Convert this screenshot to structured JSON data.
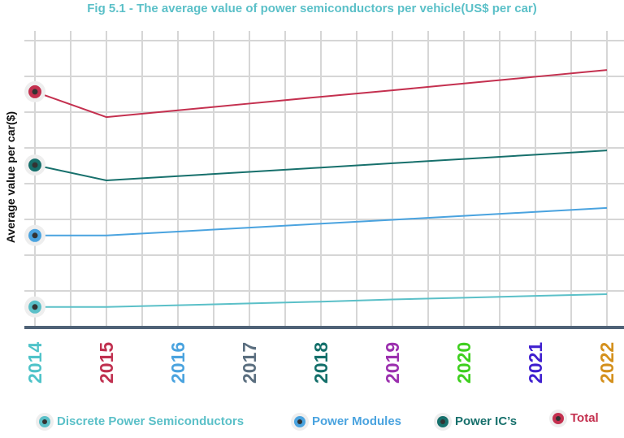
{
  "chart_data": {
    "type": "line",
    "title": "Fig 5.1 - The average value of power semiconductors per vehicle(US$ per car)",
    "xlabel": "",
    "ylabel": "Average value per car($)",
    "categories": [
      "2014",
      "2015",
      "2016",
      "2017",
      "2018",
      "2019",
      "2020",
      "2021",
      "2022"
    ],
    "category_colors": [
      "#4fc3c9",
      "#c0304f",
      "#4aa3df",
      "#5a6e7f",
      "#136f6a",
      "#9b2fae",
      "#3fcf1f",
      "#3f1fcf",
      "#d4901c"
    ],
    "ylim": [
      0,
      8
    ],
    "y_tick_labels_shown": false,
    "grid": true,
    "legend_position": "bottom",
    "series": [
      {
        "name": "Discrete Power Semiconductors",
        "color": "#5bc0c8",
        "values": [
          0.55,
          0.55,
          0.6,
          0.65,
          0.7,
          0.76,
          0.81,
          0.86,
          0.91
        ]
      },
      {
        "name": "Power Modules",
        "color": "#4aa3df",
        "values": [
          2.55,
          2.55,
          2.66,
          2.77,
          2.88,
          2.99,
          3.1,
          3.21,
          3.32
        ]
      },
      {
        "name": "Power IC’s",
        "color": "#17706c",
        "values": [
          4.52,
          4.09,
          4.21,
          4.33,
          4.45,
          4.57,
          4.69,
          4.81,
          4.93
        ]
      },
      {
        "name": "Total",
        "color": "#c4304f",
        "values": [
          6.57,
          5.86,
          6.05,
          6.24,
          6.43,
          6.61,
          6.8,
          6.99,
          7.18
        ]
      }
    ]
  }
}
